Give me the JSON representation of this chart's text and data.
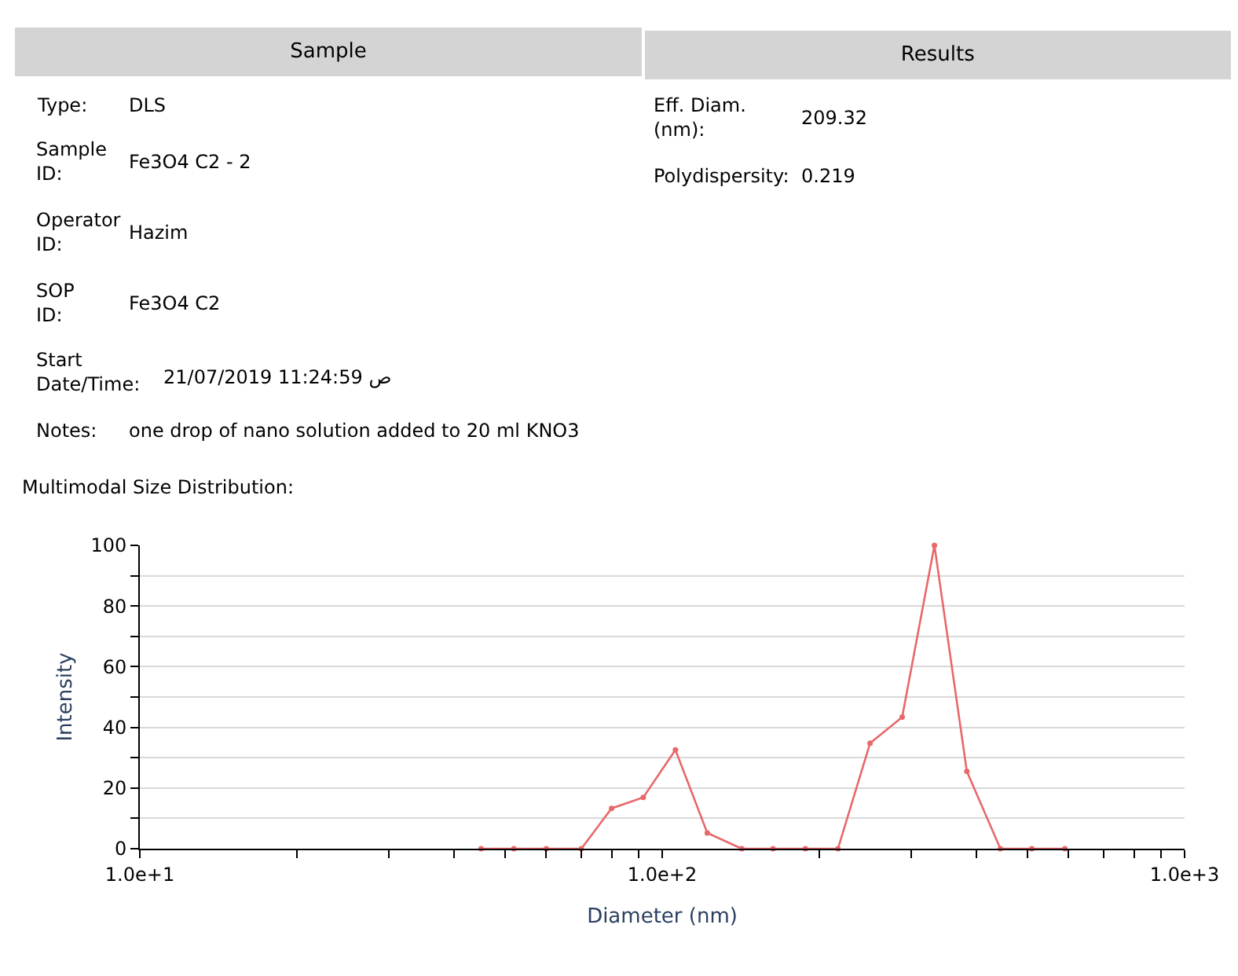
{
  "chart_data": {
    "type": "line",
    "title": "Multimodal Size Distribution:",
    "xlabel": "Diameter (nm)",
    "ylabel": "Intensity",
    "log": "x",
    "x": [
      45,
      52,
      60,
      70,
      80,
      92,
      106,
      122,
      142,
      163,
      188,
      217,
      250,
      288,
      332,
      383,
      444,
      510,
      590
    ],
    "series": [
      {
        "color": "#e8686a",
        "values": [
          0,
          0,
          0,
          0,
          13.3,
          16.9,
          32.6,
          5.2,
          0,
          0,
          0,
          0,
          34.8,
          43.4,
          100,
          25.5,
          0,
          0,
          0
        ]
      }
    ],
    "xlim": [
      10,
      1000
    ],
    "xticks": [
      {
        "value": 10,
        "label": "1.0e+1"
      },
      {
        "value": 20,
        "label": null
      },
      {
        "value": 30,
        "label": null
      },
      {
        "value": 40,
        "label": null
      },
      {
        "value": 50,
        "label": null
      },
      {
        "value": 60,
        "label": null
      },
      {
        "value": 70,
        "label": null
      },
      {
        "value": 80,
        "label": null
      },
      {
        "value": 90,
        "label": null
      },
      {
        "value": 100,
        "label": "1.0e+2"
      },
      {
        "value": 200,
        "label": null
      },
      {
        "value": 300,
        "label": null
      },
      {
        "value": 400,
        "label": null
      },
      {
        "value": 500,
        "label": null
      },
      {
        "value": 600,
        "label": null
      },
      {
        "value": 700,
        "label": null
      },
      {
        "value": 800,
        "label": null
      },
      {
        "value": 900,
        "label": null
      },
      {
        "value": 1000,
        "label": "1.0e+3"
      }
    ],
    "ylim": [
      0,
      100
    ],
    "yticks": [
      0,
      {
        "value": 10,
        "label": null
      },
      20,
      {
        "value": 30,
        "label": null
      },
      40,
      {
        "value": 50,
        "label": null
      },
      60,
      {
        "value": 70,
        "label": null
      },
      80,
      {
        "value": 90,
        "label": null
      },
      100
    ],
    "grid": "y",
    "marker": "circle",
    "line_style": "solid",
    "legend": false,
    "annotations": [
      "Sample",
      "Results",
      "Type:",
      "DLS",
      "Sample ID:",
      "Fe3O4 C2 - 2",
      "Operator ID:",
      "Hazim",
      "SOP ID:",
      "Fe3O4 C2",
      "Start Date/Time:",
      "21/07/2019 11:24:59 ص",
      "Notes:",
      "one drop of nano solution added to 20 ml KNO3",
      "Eff. Diam. (nm):",
      "209.32",
      "Polydispersity:",
      "0.219"
    ]
  }
}
